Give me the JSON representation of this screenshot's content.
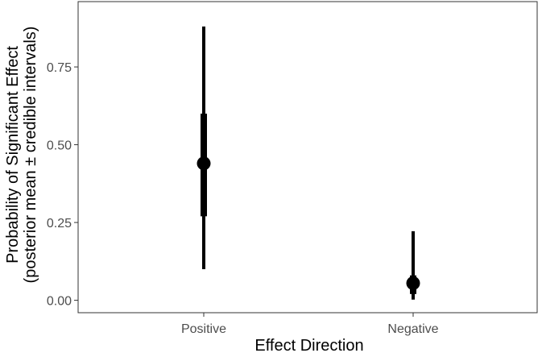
{
  "chart_data": {
    "type": "pointrange",
    "title": "",
    "xlabel": "Effect Direction",
    "ylabel_line1": "Probability of Significant Effect",
    "ylabel_line2": "(posterior mean ± credible intervals)",
    "categories": [
      "Positive",
      "Negative"
    ],
    "ylim": [
      -0.04,
      0.96
    ],
    "yticks": [
      0.0,
      0.25,
      0.5,
      0.75
    ],
    "ytick_labels": [
      "0.00",
      "0.25",
      "0.50",
      "0.75"
    ],
    "series": [
      {
        "mean": [
          0.44,
          0.055
        ],
        "inner_lower": [
          0.27,
          0.02
        ],
        "inner_upper": [
          0.6,
          0.08
        ],
        "outer_lower": [
          0.1,
          0.002
        ],
        "outer_upper": [
          0.88,
          0.222
        ]
      }
    ],
    "grid": false,
    "colors": {
      "marks": "#000000",
      "tick_labels": "#4d4d4d",
      "panel_border": "#333333"
    }
  }
}
